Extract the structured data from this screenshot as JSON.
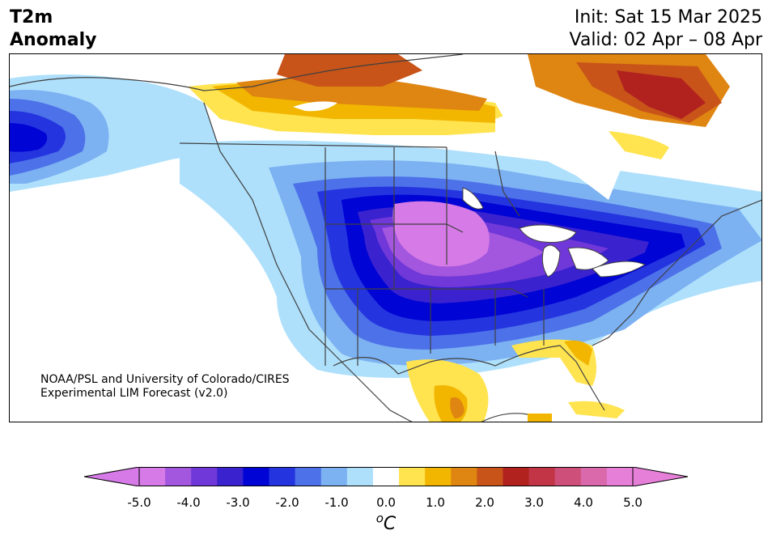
{
  "header": {
    "title_line1": "T2m",
    "title_line2": "Anomaly",
    "init_label": "Init: Sat 15 Mar 2025",
    "valid_label": "Valid: 02 Apr – 08 Apr"
  },
  "credit": {
    "line1": "NOAA/PSL and University of Colorado/CIRES",
    "line2": "Experimental LIM Forecast (v2.0)"
  },
  "colorbar": {
    "units": "oC",
    "tick_labels": [
      "-5.0",
      "-4.0",
      "-3.0",
      "-2.0",
      "-1.0",
      "0.0",
      "1.0",
      "2.0",
      "3.0",
      "4.0",
      "5.0"
    ],
    "levels": [
      -5.0,
      -4.5,
      -4.0,
      -3.5,
      -3.0,
      -2.5,
      -2.0,
      -1.5,
      -1.0,
      -0.5,
      0.5,
      1.0,
      1.5,
      2.0,
      2.5,
      3.0,
      3.5,
      4.0,
      4.5,
      5.0
    ],
    "colors": [
      "#d57ae6",
      "#a356de",
      "#7038d8",
      "#3a22cf",
      "#0004d4",
      "#2435e0",
      "#4d71e8",
      "#7cb1f2",
      "#aee0fc",
      "#ffffff",
      "#ffe34f",
      "#f2b600",
      "#df8511",
      "#c85419",
      "#b1221f",
      "#c23546",
      "#ce507a",
      "#da69ab",
      "#e67fd8"
    ],
    "under_color": "#d57ae6",
    "over_color": "#e67fd8"
  }
}
